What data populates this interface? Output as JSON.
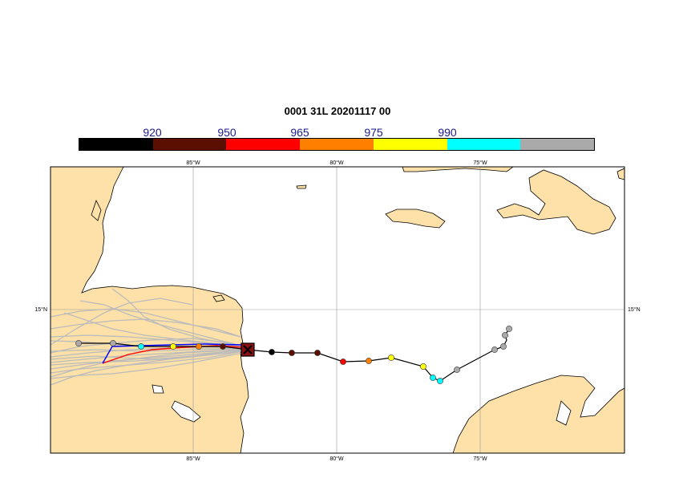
{
  "title": "0001 31L 20201117 00",
  "colorbar": {
    "labels": [
      "920",
      "950",
      "965",
      "975",
      "990"
    ],
    "colors": [
      "#000000",
      "#5a0f00",
      "#ff0000",
      "#ff8000",
      "#ffff00",
      "#00ffff",
      "#aaaaaa"
    ]
  },
  "map": {
    "land_color": "#fde1a9",
    "ocean_color": "#ffffff",
    "grid_color": "#999999",
    "lon_ticks_top": [
      "85°W",
      "80°W",
      "75°W"
    ],
    "lon_ticks_bottom": [
      "85°W",
      "80°W",
      "75°W"
    ],
    "lat_tick_left": "15°N",
    "lat_tick_right": "15°N"
  },
  "tracks": {
    "ensemble_color": "#bbbbbb",
    "forecast_line_color": "#000000",
    "analysis_line_color": "#ff0000",
    "observed_line_color": "#0000ff",
    "forecast_points_colors": [
      "#aaaaaa",
      "#aaaaaa",
      "#aaaaaa",
      "#aaaaaa",
      "#aaaaaa",
      "#00ffff",
      "#00ffff",
      "#ffff00",
      "#ffff00",
      "#ff8000",
      "#ff0000",
      "#5a0f00",
      "#5a0f00",
      "#000000",
      "#5a0f00",
      "#ff8000",
      "#ffff00",
      "#00ffff",
      "#aaaaaa"
    ]
  }
}
